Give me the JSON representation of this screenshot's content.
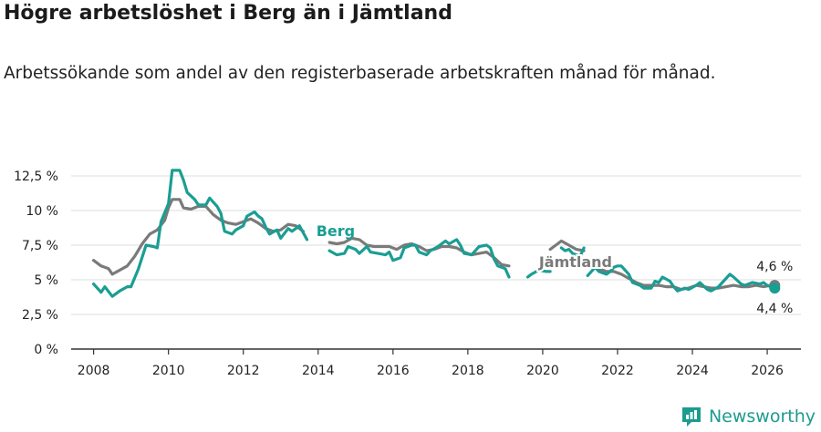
{
  "header": {
    "title": "Högre arbetslöshet i Berg än i Jämtland",
    "subtitle": "Arbetssökande som andel av den registerbaserade arbetskraften månad för månad."
  },
  "brand": {
    "name": "Newsworthy",
    "icon": "newsworthy-logo-icon"
  },
  "colors": {
    "berg": "#1a9e93",
    "jamtland": "#7a7a7a",
    "grid": "#dddddd",
    "axis": "#333333"
  },
  "chart_data": {
    "type": "line",
    "title": "Högre arbetslöshet i Berg än i Jämtland",
    "xlabel": "",
    "ylabel": "",
    "xlim": [
      2007.4,
      2026.9
    ],
    "ylim": [
      0,
      12.5
    ],
    "y_ticks": [
      0,
      2.5,
      5,
      7.5,
      10,
      12.5
    ],
    "y_tick_labels": [
      "0 %",
      "2,5 %",
      "5 %",
      "7,5 %",
      "10 %",
      "12,5 %"
    ],
    "x_ticks": [
      2008,
      2010,
      2012,
      2014,
      2016,
      2018,
      2020,
      2022,
      2024,
      2026
    ],
    "x_tick_labels": [
      "2008",
      "2010",
      "2012",
      "2014",
      "2016",
      "2018",
      "2020",
      "2022",
      "2024",
      "2026"
    ],
    "series": [
      {
        "name": "Berg",
        "label": "Berg",
        "end_label": "4,4 %",
        "segments": [
          [
            [
              2008.0,
              4.7
            ],
            [
              2008.2,
              4.1
            ],
            [
              2008.3,
              4.5
            ],
            [
              2008.5,
              3.8
            ],
            [
              2008.7,
              4.2
            ],
            [
              2008.9,
              4.5
            ],
            [
              2009.0,
              4.5
            ],
            [
              2009.2,
              5.8
            ],
            [
              2009.4,
              7.5
            ],
            [
              2009.6,
              7.4
            ],
            [
              2009.7,
              7.3
            ],
            [
              2009.8,
              9.2
            ],
            [
              2010.0,
              10.5
            ],
            [
              2010.1,
              12.9
            ],
            [
              2010.3,
              12.9
            ],
            [
              2010.4,
              12.2
            ],
            [
              2010.5,
              11.3
            ],
            [
              2010.7,
              10.8
            ],
            [
              2010.8,
              10.4
            ],
            [
              2011.0,
              10.4
            ],
            [
              2011.1,
              10.9
            ],
            [
              2011.3,
              10.3
            ],
            [
              2011.4,
              9.8
            ],
            [
              2011.5,
              8.5
            ],
            [
              2011.7,
              8.3
            ],
            [
              2011.8,
              8.6
            ],
            [
              2012.0,
              8.9
            ],
            [
              2012.1,
              9.6
            ],
            [
              2012.3,
              9.9
            ],
            [
              2012.4,
              9.6
            ],
            [
              2012.5,
              9.4
            ],
            [
              2012.6,
              8.8
            ],
            [
              2012.7,
              8.3
            ],
            [
              2012.9,
              8.6
            ],
            [
              2013.0,
              8.0
            ],
            [
              2013.2,
              8.7
            ],
            [
              2013.3,
              8.5
            ],
            [
              2013.5,
              8.9
            ],
            [
              2013.7,
              7.9
            ]
          ],
          [
            [
              2014.3,
              7.1
            ],
            [
              2014.5,
              6.8
            ],
            [
              2014.7,
              6.9
            ],
            [
              2014.8,
              7.4
            ],
            [
              2015.0,
              7.2
            ],
            [
              2015.1,
              6.9
            ],
            [
              2015.3,
              7.4
            ],
            [
              2015.4,
              7.0
            ],
            [
              2015.6,
              6.9
            ],
            [
              2015.8,
              6.8
            ],
            [
              2015.9,
              7.0
            ],
            [
              2016.0,
              6.4
            ],
            [
              2016.2,
              6.6
            ],
            [
              2016.3,
              7.3
            ],
            [
              2016.5,
              7.5
            ],
            [
              2016.6,
              7.5
            ],
            [
              2016.7,
              7.0
            ],
            [
              2016.9,
              6.8
            ],
            [
              2017.0,
              7.1
            ],
            [
              2017.2,
              7.4
            ],
            [
              2017.4,
              7.8
            ],
            [
              2017.5,
              7.6
            ],
            [
              2017.7,
              7.9
            ],
            [
              2017.8,
              7.5
            ],
            [
              2017.9,
              6.9
            ],
            [
              2018.1,
              6.8
            ],
            [
              2018.2,
              7.1
            ],
            [
              2018.3,
              7.4
            ],
            [
              2018.5,
              7.5
            ],
            [
              2018.6,
              7.3
            ],
            [
              2018.7,
              6.5
            ],
            [
              2018.8,
              6.0
            ],
            [
              2019.0,
              5.8
            ],
            [
              2019.1,
              5.2
            ]
          ],
          [
            [
              2019.6,
              5.2
            ],
            [
              2019.7,
              5.4
            ],
            [
              2019.9,
              5.7
            ],
            [
              2020.1,
              5.6
            ],
            [
              2020.2,
              5.6
            ]
          ],
          [
            [
              2020.5,
              7.3
            ],
            [
              2020.6,
              7.1
            ],
            [
              2020.7,
              7.2
            ],
            [
              2020.8,
              6.9
            ],
            [
              2021.0,
              6.7
            ],
            [
              2021.1,
              7.3
            ]
          ],
          [
            [
              2021.2,
              5.3
            ],
            [
              2021.4,
              5.9
            ],
            [
              2021.5,
              5.6
            ],
            [
              2021.7,
              5.4
            ],
            [
              2021.8,
              5.6
            ],
            [
              2021.9,
              5.9
            ],
            [
              2022.0,
              6.0
            ],
            [
              2022.1,
              6.0
            ],
            [
              2022.3,
              5.4
            ],
            [
              2022.4,
              4.8
            ],
            [
              2022.6,
              4.6
            ],
            [
              2022.7,
              4.4
            ],
            [
              2022.9,
              4.4
            ],
            [
              2023.0,
              4.9
            ],
            [
              2023.1,
              4.8
            ],
            [
              2023.2,
              5.2
            ],
            [
              2023.4,
              4.9
            ],
            [
              2023.5,
              4.5
            ],
            [
              2023.6,
              4.2
            ],
            [
              2023.8,
              4.4
            ],
            [
              2023.9,
              4.3
            ],
            [
              2024.1,
              4.6
            ],
            [
              2024.2,
              4.8
            ],
            [
              2024.4,
              4.3
            ],
            [
              2024.5,
              4.2
            ],
            [
              2024.7,
              4.5
            ],
            [
              2024.8,
              4.8
            ],
            [
              2025.0,
              5.4
            ],
            [
              2025.1,
              5.2
            ],
            [
              2025.3,
              4.7
            ],
            [
              2025.4,
              4.6
            ],
            [
              2025.6,
              4.8
            ],
            [
              2025.8,
              4.7
            ],
            [
              2025.9,
              4.8
            ],
            [
              2026.0,
              4.6
            ],
            [
              2026.2,
              4.4
            ]
          ]
        ]
      },
      {
        "name": "Jämtland",
        "label": "Jämtland",
        "end_label": "4,6 %",
        "segments": [
          [
            [
              2008.0,
              6.4
            ],
            [
              2008.2,
              6.0
            ],
            [
              2008.4,
              5.8
            ],
            [
              2008.5,
              5.4
            ],
            [
              2008.7,
              5.7
            ],
            [
              2008.9,
              6.0
            ],
            [
              2009.1,
              6.7
            ],
            [
              2009.3,
              7.6
            ],
            [
              2009.5,
              8.3
            ],
            [
              2009.7,
              8.6
            ],
            [
              2009.9,
              9.3
            ],
            [
              2010.0,
              10.2
            ],
            [
              2010.1,
              10.8
            ],
            [
              2010.3,
              10.8
            ],
            [
              2010.4,
              10.2
            ],
            [
              2010.6,
              10.1
            ],
            [
              2010.8,
              10.3
            ],
            [
              2011.0,
              10.3
            ],
            [
              2011.2,
              9.7
            ],
            [
              2011.4,
              9.3
            ],
            [
              2011.6,
              9.1
            ],
            [
              2011.8,
              9.0
            ],
            [
              2012.0,
              9.2
            ],
            [
              2012.2,
              9.4
            ],
            [
              2012.4,
              9.1
            ],
            [
              2012.6,
              8.7
            ],
            [
              2012.8,
              8.5
            ],
            [
              2013.0,
              8.6
            ],
            [
              2013.2,
              9.0
            ],
            [
              2013.4,
              8.9
            ],
            [
              2013.6,
              8.5
            ]
          ],
          [
            [
              2014.3,
              7.7
            ],
            [
              2014.5,
              7.6
            ],
            [
              2014.7,
              7.7
            ],
            [
              2014.9,
              8.0
            ],
            [
              2015.1,
              7.9
            ],
            [
              2015.3,
              7.5
            ],
            [
              2015.5,
              7.4
            ],
            [
              2015.7,
              7.4
            ],
            [
              2015.9,
              7.4
            ],
            [
              2016.1,
              7.2
            ],
            [
              2016.3,
              7.5
            ],
            [
              2016.5,
              7.6
            ],
            [
              2016.7,
              7.4
            ],
            [
              2016.9,
              7.1
            ],
            [
              2017.1,
              7.2
            ],
            [
              2017.3,
              7.4
            ],
            [
              2017.5,
              7.4
            ],
            [
              2017.7,
              7.3
            ],
            [
              2017.9,
              7.0
            ],
            [
              2018.1,
              6.8
            ],
            [
              2018.3,
              6.9
            ],
            [
              2018.5,
              7.0
            ],
            [
              2018.7,
              6.6
            ],
            [
              2018.9,
              6.1
            ],
            [
              2019.1,
              6.0
            ]
          ],
          [
            [
              2020.2,
              7.2
            ],
            [
              2020.4,
              7.6
            ],
            [
              2020.5,
              7.8
            ],
            [
              2020.7,
              7.5
            ],
            [
              2020.9,
              7.2
            ],
            [
              2021.1,
              7.1
            ]
          ],
          [
            [
              2021.3,
              6.1
            ],
            [
              2021.5,
              5.8
            ],
            [
              2021.7,
              5.6
            ],
            [
              2021.9,
              5.6
            ],
            [
              2022.1,
              5.4
            ],
            [
              2022.3,
              5.1
            ],
            [
              2022.5,
              4.8
            ],
            [
              2022.7,
              4.6
            ],
            [
              2022.9,
              4.6
            ],
            [
              2023.1,
              4.6
            ],
            [
              2023.3,
              4.5
            ],
            [
              2023.5,
              4.5
            ],
            [
              2023.7,
              4.3
            ],
            [
              2023.9,
              4.4
            ],
            [
              2024.1,
              4.6
            ],
            [
              2024.3,
              4.5
            ],
            [
              2024.5,
              4.4
            ],
            [
              2024.7,
              4.4
            ],
            [
              2024.9,
              4.5
            ],
            [
              2025.1,
              4.6
            ],
            [
              2025.3,
              4.5
            ],
            [
              2025.5,
              4.5
            ],
            [
              2025.7,
              4.6
            ],
            [
              2025.9,
              4.5
            ],
            [
              2026.1,
              4.6
            ],
            [
              2026.2,
              4.6
            ]
          ]
        ]
      }
    ]
  }
}
